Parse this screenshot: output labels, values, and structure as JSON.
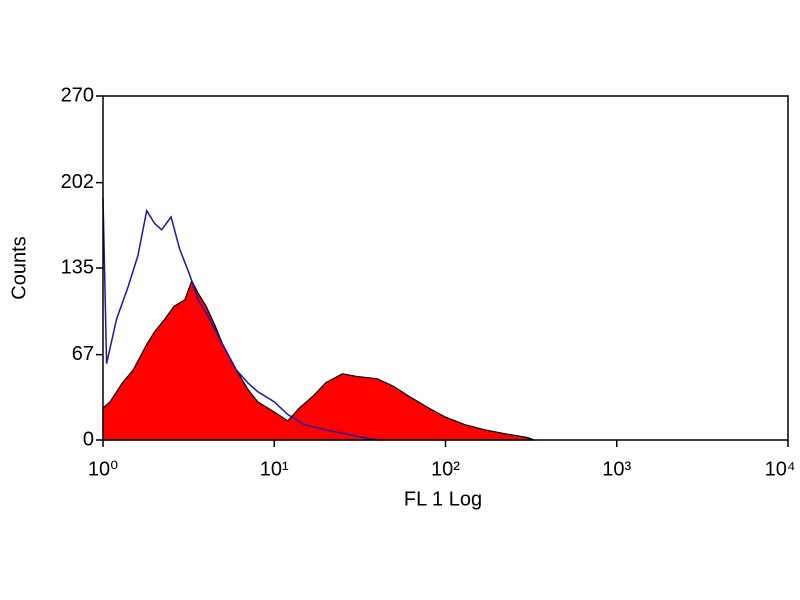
{
  "chart_data": {
    "type": "histogram",
    "xlabel": "FL 1 Log",
    "ylabel": "Counts",
    "xscale": "log",
    "xlim": [
      1,
      10000
    ],
    "xticks": [
      {
        "value": 1,
        "label": "10⁰"
      },
      {
        "value": 10,
        "label": "10¹"
      },
      {
        "value": 100,
        "label": "10²"
      },
      {
        "value": 1000,
        "label": "10³"
      },
      {
        "value": 10000,
        "label": "10⁴"
      }
    ],
    "ylim": [
      0,
      270
    ],
    "yticks": [
      0,
      67,
      135,
      202,
      270
    ],
    "series": [
      {
        "color": "#ff0000",
        "outline": "#000000",
        "filled": true,
        "x": [
          1,
          1.1,
          1.3,
          1.5,
          1.8,
          2,
          2.3,
          2.6,
          3,
          3.3,
          3.6,
          4,
          4.5,
          5,
          6,
          7,
          8,
          10,
          12,
          14,
          17,
          20,
          25,
          30,
          40,
          50,
          60,
          80,
          100,
          130,
          170,
          220,
          300,
          330
        ],
        "values": [
          25,
          30,
          45,
          55,
          75,
          85,
          95,
          105,
          110,
          125,
          115,
          105,
          90,
          75,
          55,
          40,
          30,
          22,
          15,
          25,
          35,
          45,
          52,
          50,
          48,
          42,
          35,
          25,
          18,
          12,
          8,
          5,
          2,
          0
        ]
      },
      {
        "color": "#1a1aa0",
        "filled": false,
        "x": [
          1,
          1.05,
          1.2,
          1.4,
          1.6,
          1.8,
          2,
          2.2,
          2.5,
          2.8,
          3.2,
          3.6,
          4,
          5,
          6,
          7,
          8,
          10,
          12,
          15,
          20,
          30,
          40
        ],
        "values": [
          190,
          60,
          95,
          120,
          145,
          180,
          170,
          165,
          175,
          150,
          130,
          110,
          100,
          75,
          55,
          45,
          38,
          30,
          20,
          12,
          8,
          3,
          0
        ]
      }
    ]
  }
}
